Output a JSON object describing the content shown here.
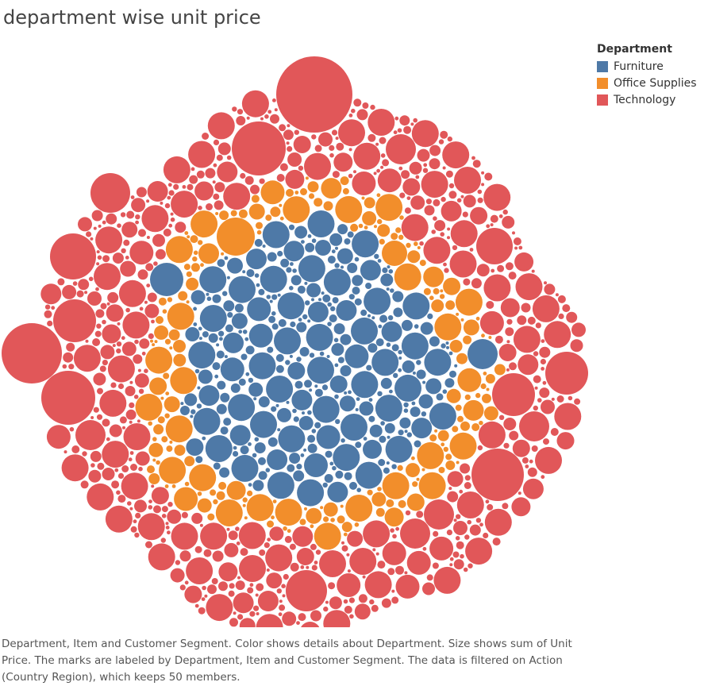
{
  "chart_data": {
    "type": "packed-bubble",
    "title": "department wise unit price",
    "legend": {
      "title": "Department",
      "placement": "top-right",
      "items": [
        {
          "label": "Furniture",
          "color": "#4e79a7"
        },
        {
          "label": "Office Supplies",
          "color": "#f28e2b"
        },
        {
          "label": "Technology",
          "color": "#e15759"
        }
      ]
    },
    "series": [
      {
        "name": "Furniture",
        "color": "#4e79a7"
      },
      {
        "name": "Office Supplies",
        "color": "#f28e2b"
      },
      {
        "name": "Technology",
        "color": "#e15759"
      }
    ]
  },
  "caption": "Department, Item and Customer Segment.  Color shows details about Department.  Size shows sum of Unit Price.  The marks are labeled by Department, Item and Customer Segment. The data is filtered on Action (Country Region), which keeps 50 members."
}
